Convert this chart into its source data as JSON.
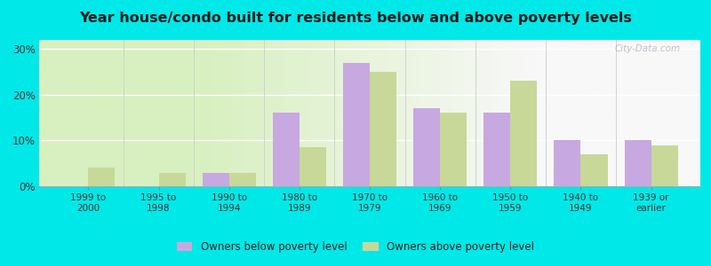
{
  "title": "Year house/condo built for residents below and above poverty levels",
  "categories": [
    "1999 to\n2000",
    "1995 to\n1998",
    "1990 to\n1994",
    "1980 to\n1989",
    "1970 to\n1979",
    "1960 to\n1969",
    "1950 to\n1959",
    "1940 to\n1949",
    "1939 or\nearlier"
  ],
  "below_poverty": [
    0,
    0,
    3,
    16,
    27,
    17,
    16,
    10,
    10
  ],
  "above_poverty": [
    4,
    3,
    3,
    8.5,
    25,
    16,
    23,
    7,
    9
  ],
  "below_color": "#c8a8e0",
  "above_color": "#c8d898",
  "title_color": "#1a1a1a",
  "ylabel_ticks": [
    0,
    10,
    20,
    30
  ],
  "ylim": [
    0,
    32
  ],
  "bar_width": 0.38,
  "legend_below_label": "Owners below poverty level",
  "legend_above_label": "Owners above poverty level",
  "watermark": "City-Data.com",
  "outer_bg": "#00e8e8",
  "grid_color": "#e0e0e0",
  "spine_color": "#bbbbbb"
}
